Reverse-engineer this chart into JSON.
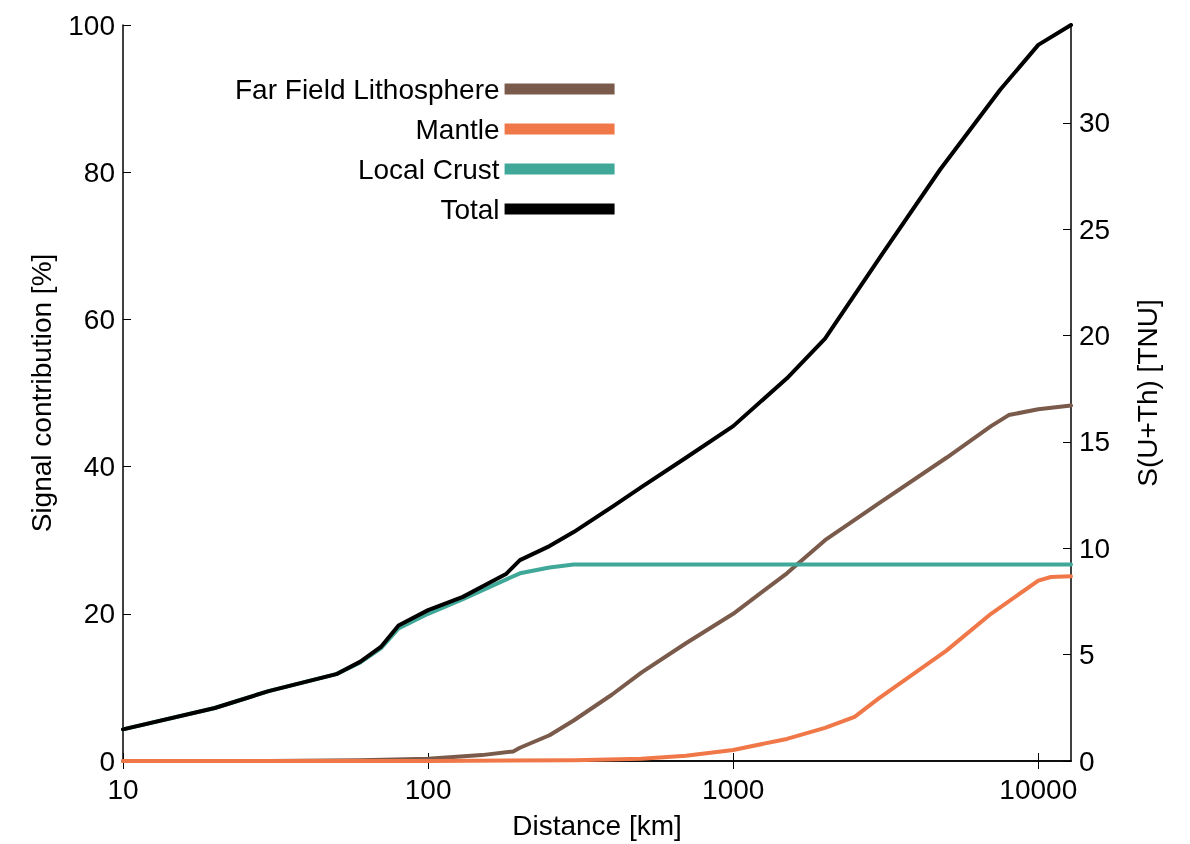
{
  "chart_data": {
    "type": "line",
    "xlabel": "Distance [km]",
    "ylabel": "Signal contribution [%]",
    "y2label": "S(U+Th) [TNU]",
    "log": "x",
    "xlim": [
      10,
      12800
    ],
    "xticks": [
      10,
      100,
      1000,
      10000
    ],
    "ylim": [
      0,
      100
    ],
    "yticks": [
      0,
      20,
      40,
      60,
      80,
      100
    ],
    "y2lim": [
      0,
      34.6
    ],
    "y2ticks": [
      0,
      5,
      10,
      15,
      20,
      25,
      30
    ],
    "grid": false,
    "legend": "top left",
    "marker": "none",
    "line_style": "solid",
    "series": [
      {
        "name": "Far Field Lithosphere",
        "color": "#7a5a4a",
        "x": [
          10,
          30,
          60,
          100,
          150,
          190,
          200,
          250,
          300,
          400,
          500,
          700,
          1000,
          1500,
          2000,
          3000,
          5000,
          7000,
          8000,
          10000,
          12800
        ],
        "values": [
          0,
          0,
          0.1,
          0.3,
          0.8,
          1.3,
          1.8,
          3.5,
          5.5,
          9,
          12,
          16,
          20,
          25.5,
          30,
          35,
          41.2,
          45.5,
          47,
          47.8,
          48.3
        ]
      },
      {
        "name": "Mantle",
        "color": "#f07848",
        "x": [
          10,
          100,
          300,
          500,
          700,
          1000,
          1500,
          2000,
          2500,
          3000,
          5000,
          7000,
          10000,
          11000,
          12800
        ],
        "values": [
          0,
          0,
          0.1,
          0.3,
          0.7,
          1.5,
          3,
          4.5,
          6,
          8.5,
          15,
          20,
          24.5,
          25,
          25.1
        ]
      },
      {
        "name": "Local Crust",
        "color": "#40a898",
        "x": [
          10,
          20,
          30,
          50,
          60,
          70,
          80,
          100,
          130,
          160,
          200,
          250,
          300,
          500,
          1000,
          10000,
          12800
        ],
        "values": [
          4.3,
          7.2,
          9.5,
          11.8,
          13.4,
          15.3,
          18,
          20,
          22,
          23.7,
          25.5,
          26.3,
          26.7,
          26.7,
          26.7,
          26.7,
          26.7
        ]
      },
      {
        "name": "Total",
        "color": "#000000",
        "x": [
          10,
          20,
          30,
          50,
          60,
          70,
          80,
          100,
          130,
          160,
          180,
          200,
          250,
          300,
          400,
          500,
          700,
          1000,
          1500,
          2000,
          3000,
          4775,
          7500,
          10000,
          12800
        ],
        "values": [
          4.3,
          7.2,
          9.5,
          11.8,
          13.5,
          15.5,
          18.4,
          20.5,
          22.3,
          24.3,
          25.4,
          27.3,
          29.2,
          31.1,
          34.5,
          37.2,
          41.2,
          45.5,
          52,
          57.4,
          68.2,
          80.4,
          91.2,
          97.3,
          100
        ]
      }
    ]
  }
}
